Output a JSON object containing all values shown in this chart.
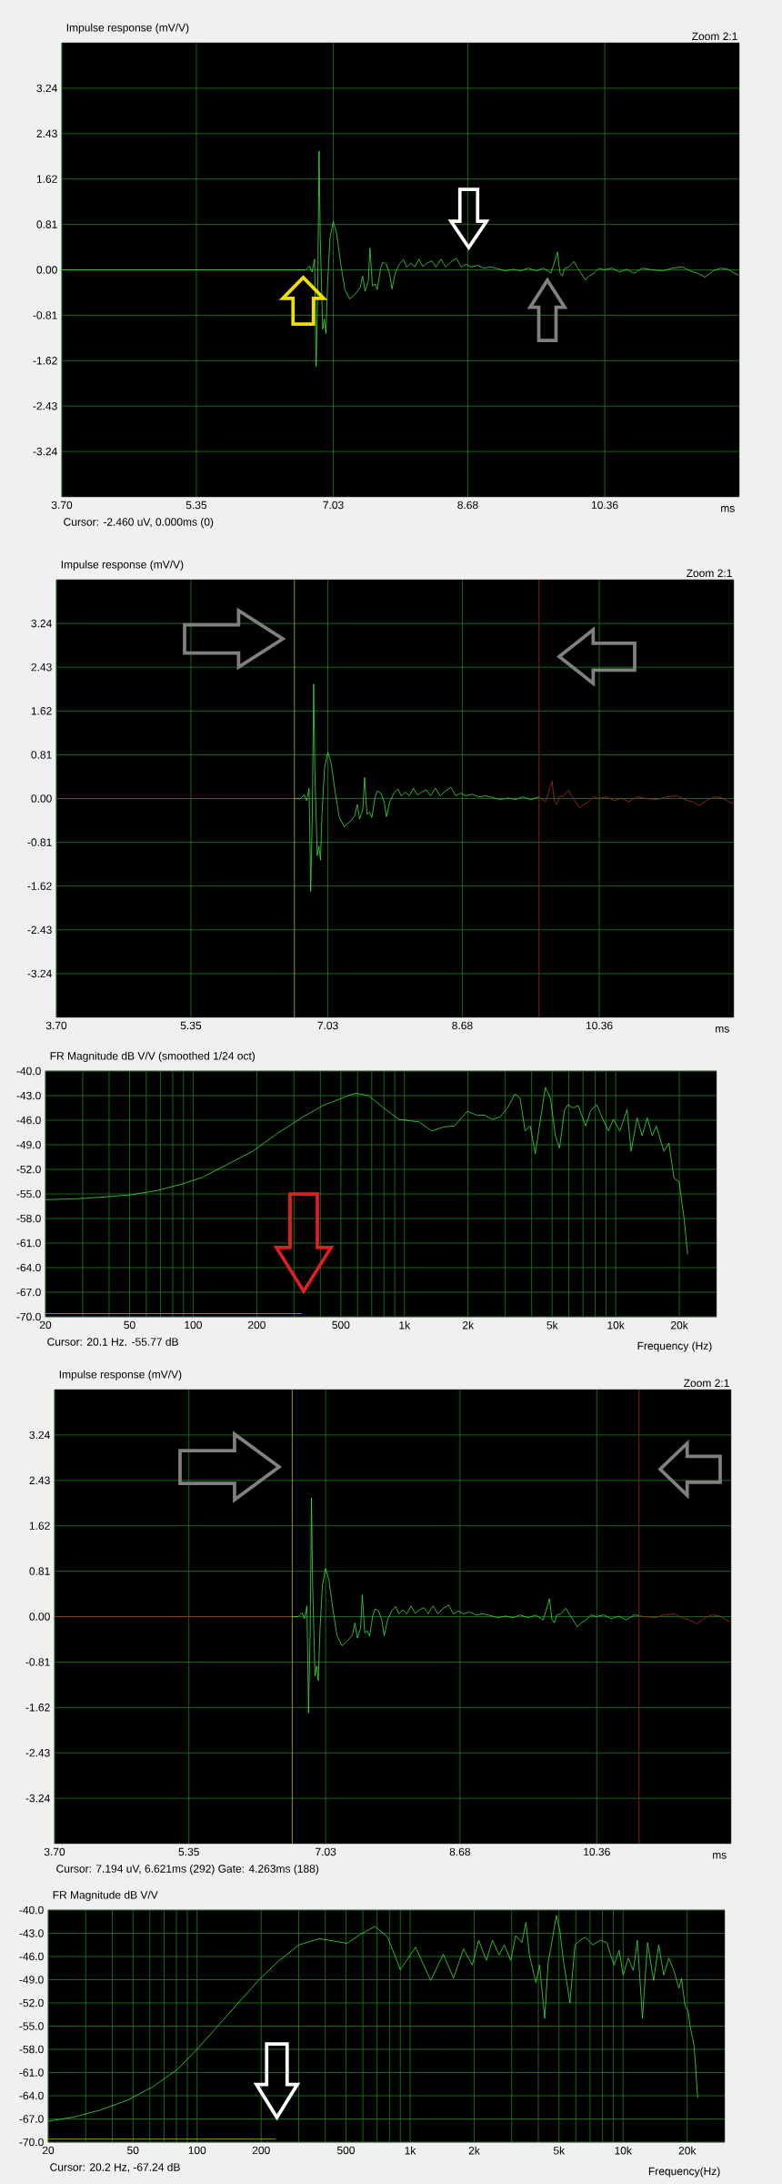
{
  "chart_data": [
    {
      "type": "line",
      "title": "Impulse response (mV/V)",
      "xlabel": "ms",
      "annotations": [
        "Zoom 2:1",
        "Cursor: -2.460 uV, 0.000ms (0)"
      ],
      "xlim": [
        3.7,
        12.01
      ],
      "ylim": [
        -4.05,
        4.05
      ],
      "xticks": [
        {
          "value": 3.7,
          "label": "3.70"
        },
        5.35,
        7.03,
        8.68,
        10.36
      ],
      "yticks": [
        3.24,
        2.43,
        1.62,
        0.81,
        {
          "value": 0,
          "label": "0.00"
        },
        -0.81,
        -1.62,
        -2.43,
        -3.24
      ],
      "grid": true,
      "series": [
        {
          "color": "#40e040",
          "x": [
            3.7,
            6.694,
            6.74,
            6.77,
            6.8,
            6.82,
            6.84,
            6.856,
            6.87,
            6.9,
            6.92,
            6.94,
            6.96,
            6.99,
            7.03,
            7.07,
            7.12,
            7.17,
            7.23,
            7.3,
            7.36,
            7.39,
            7.42,
            7.46,
            7.48,
            7.51,
            7.54,
            7.57,
            7.61,
            7.64,
            7.68,
            7.72,
            7.75,
            7.79,
            7.84,
            7.89,
            7.93,
            7.98,
            8.03,
            8.08,
            8.13,
            8.18,
            8.24,
            8.29,
            8.35,
            8.41,
            8.47,
            8.54,
            8.6,
            8.66,
            8.72,
            8.8,
            8.88,
            8.96,
            9.05,
            9.14,
            9.24,
            9.33,
            9.42,
            9.52,
            9.61,
            9.7,
            9.74,
            9.78,
            9.81,
            9.84,
            9.87,
            9.92,
            9.98,
            10.03,
            10.07,
            10.12,
            10.17,
            10.23,
            10.29,
            10.35,
            10.45,
            10.54,
            10.63,
            10.72,
            10.82,
            10.94,
            11.07,
            11.19,
            11.31,
            11.41,
            11.5,
            11.59,
            11.69,
            11.78,
            11.87,
            11.95,
            12.0
          ],
          "values": [
            0,
            0,
            0.07,
            -0.04,
            0.19,
            -1.72,
            -0.25,
            2.12,
            0.57,
            -1.06,
            -0.88,
            -1.14,
            -0.25,
            0.57,
            0.86,
            0.66,
            0.12,
            -0.34,
            -0.52,
            -0.43,
            -0.32,
            -0.11,
            -0.38,
            -0.2,
            0.39,
            -0.29,
            -0.25,
            -0.35,
            0.03,
            0.14,
            0.1,
            -0.06,
            -0.34,
            -0.06,
            0.1,
            0.18,
            0.05,
            0.12,
            0.05,
            0.19,
            0.06,
            0.12,
            0.16,
            0.05,
            0.19,
            0.05,
            0.14,
            0.21,
            0.05,
            0.1,
            0.05,
            0.08,
            0.03,
            0.05,
            0.02,
            -0.02,
            0.01,
            -0.02,
            0.03,
            -0.02,
            0.03,
            -0.06,
            0.12,
            0.32,
            -0.05,
            -0.11,
            0.03,
            0.05,
            0.15,
            0.03,
            -0.06,
            -0.18,
            -0.11,
            -0.06,
            0.03,
            0,
            0.03,
            -0.04,
            0.01,
            -0.06,
            0.03,
            0,
            -0.02,
            0.03,
            0.05,
            -0.02,
            -0.06,
            -0.13,
            -0.02,
            0.03,
            0.01,
            -0.06,
            -0.09
          ]
        }
      ]
    },
    {
      "type": "line",
      "title": "Impulse response (mV/V)",
      "xlabel": "ms",
      "annotations": [
        "Zoom 2:1"
      ],
      "xlim": [
        3.7,
        12.01
      ],
      "ylim": [
        -4.05,
        4.05
      ],
      "xticks": [
        {
          "value": 3.7,
          "label": "3.70"
        },
        5.35,
        7.03,
        8.68,
        10.36
      ],
      "yticks": [
        3.24,
        2.43,
        1.62,
        0.81,
        {
          "value": 0,
          "label": "0.00"
        },
        -0.81,
        -1.62,
        -2.43,
        -3.24
      ],
      "grid": true,
      "ref_lines": [
        {
          "axis": "x",
          "value": 6.62,
          "color": "#c8b400"
        },
        {
          "axis": "x",
          "value": 9.62,
          "color": "#b02020"
        }
      ],
      "series": [
        {
          "color": "#b03020",
          "x": [
            3.7,
            6.62
          ],
          "values": [
            0,
            0
          ]
        },
        {
          "color": "#40e040",
          "x": [
            6.62,
            6.694,
            6.74,
            6.77,
            6.8,
            6.82,
            6.84,
            6.856,
            6.87,
            6.9,
            6.92,
            6.94,
            6.96,
            6.99,
            7.03,
            7.07,
            7.12,
            7.17,
            7.23,
            7.3,
            7.36,
            7.39,
            7.42,
            7.46,
            7.48,
            7.51,
            7.54,
            7.57,
            7.61,
            7.64,
            7.68,
            7.72,
            7.75,
            7.79,
            7.84,
            7.89,
            7.93,
            7.98,
            8.03,
            8.08,
            8.13,
            8.18,
            8.24,
            8.29,
            8.35,
            8.41,
            8.47,
            8.54,
            8.6,
            8.66,
            8.72,
            8.8,
            8.88,
            8.96,
            9.05,
            9.14,
            9.24,
            9.33,
            9.42,
            9.52,
            9.62
          ],
          "values": [
            0,
            0,
            0.07,
            -0.04,
            0.19,
            -1.72,
            -0.25,
            2.12,
            0.57,
            -1.06,
            -0.88,
            -1.14,
            -0.25,
            0.57,
            0.86,
            0.66,
            0.12,
            -0.34,
            -0.52,
            -0.43,
            -0.32,
            -0.11,
            -0.38,
            -0.2,
            0.39,
            -0.29,
            -0.25,
            -0.35,
            0.03,
            0.14,
            0.1,
            -0.06,
            -0.34,
            -0.06,
            0.1,
            0.18,
            0.05,
            0.12,
            0.05,
            0.19,
            0.06,
            0.12,
            0.16,
            0.05,
            0.19,
            0.05,
            0.14,
            0.21,
            0.05,
            0.1,
            0.05,
            0.08,
            0.03,
            0.05,
            0.02,
            -0.02,
            0.01,
            -0.02,
            0.03,
            -0.02,
            0.03
          ]
        },
        {
          "color": "#b03020",
          "x": [
            9.62,
            9.7,
            9.74,
            9.78,
            9.81,
            9.84,
            9.87,
            9.92,
            9.98,
            10.03,
            10.07,
            10.12,
            10.17,
            10.23,
            10.29,
            10.35,
            10.45,
            10.54,
            10.63,
            10.72,
            10.82,
            10.94,
            11.07,
            11.19,
            11.31,
            11.41,
            11.5,
            11.59,
            11.69,
            11.78,
            11.87,
            11.95,
            12.0
          ],
          "values": [
            0.03,
            -0.06,
            0.12,
            0.32,
            -0.05,
            -0.11,
            0.03,
            0.05,
            0.15,
            0.03,
            -0.06,
            -0.18,
            -0.11,
            -0.06,
            0.03,
            0,
            0.03,
            -0.04,
            0.01,
            -0.06,
            0.03,
            0,
            -0.02,
            0.03,
            0.05,
            -0.02,
            -0.06,
            -0.13,
            -0.02,
            0.03,
            0.01,
            -0.06,
            -0.09
          ]
        }
      ]
    },
    {
      "type": "line",
      "title": "FR Magnitude dB V/V (smoothed 1/24 oct)",
      "xlabel": "Frequency (Hz)",
      "annotations": [
        "Cursor: 20.1 Hz. -55.77 dB"
      ],
      "log": "x",
      "xlim": [
        20,
        30000
      ],
      "ylim": [
        -70,
        -40
      ],
      "xticks": [
        20,
        {
          "value": 30,
          "label": null
        },
        {
          "value": 40,
          "label": null
        },
        50,
        {
          "value": 60,
          "label": null
        },
        {
          "value": 70,
          "label": null
        },
        {
          "value": 80,
          "label": null
        },
        {
          "value": 90,
          "label": null
        },
        100,
        200,
        {
          "value": 300,
          "label": null
        },
        {
          "value": 400,
          "label": null
        },
        500,
        {
          "value": 600,
          "label": null
        },
        {
          "value": 700,
          "label": null
        },
        {
          "value": 800,
          "label": null
        },
        {
          "value": 900,
          "label": null
        },
        {
          "value": 1000,
          "label": "1k"
        },
        {
          "value": 2000,
          "label": "2k"
        },
        {
          "value": 3000,
          "label": null
        },
        {
          "value": 4000,
          "label": null
        },
        {
          "value": 5000,
          "label": "5k"
        },
        {
          "value": 6000,
          "label": null
        },
        {
          "value": 7000,
          "label": null
        },
        {
          "value": 8000,
          "label": null
        },
        {
          "value": 9000,
          "label": null
        },
        {
          "value": 10000,
          "label": "10k"
        },
        {
          "value": 20000,
          "label": "20k"
        }
      ],
      "yticks": [
        {
          "value": -40,
          "label": "-40.0"
        },
        {
          "value": -43,
          "label": "-43.0"
        },
        {
          "value": -46,
          "label": "-46.0"
        },
        {
          "value": -49,
          "label": "-49.0"
        },
        {
          "value": -52,
          "label": "-52.0"
        },
        {
          "value": -55,
          "label": "-55.0"
        },
        {
          "value": -58,
          "label": "-58.0"
        },
        {
          "value": -61,
          "label": "-61.0"
        },
        {
          "value": -64,
          "label": "-64.0"
        },
        {
          "value": -67,
          "label": "-67.0"
        },
        {
          "value": -70,
          "label": "-70.0"
        }
      ],
      "grid": true,
      "series": [
        {
          "color": "#40e040",
          "x": [
            20,
            27.8,
            36.6,
            50.9,
            67.1,
            88.4,
            110,
            145,
            191,
            251,
            331,
            412,
            543,
            589,
            676,
            798,
            942,
            1172,
            1345,
            1545,
            1726,
            1982,
            2210,
            2400,
            2607,
            2831,
            3072,
            3337,
            3527,
            3726,
            3938,
            4161,
            4397,
            4646,
            4909,
            5182,
            5420,
            5720,
            5940,
            6280,
            6640,
            7210,
            7620,
            8130,
            8740,
            9230,
            9750,
            10470,
            11320,
            11830,
            12620,
            13340,
            14100,
            14900,
            15560,
            16900,
            17860,
            18880,
            19950,
            21090,
            21900
          ],
          "values": [
            -55.7,
            -55.6,
            -55.4,
            -55.1,
            -54.6,
            -53.8,
            -53.0,
            -51.4,
            -49.8,
            -47.6,
            -45.6,
            -44.2,
            -43.0,
            -42.7,
            -43.0,
            -44.5,
            -45.9,
            -46.2,
            -47.3,
            -46.8,
            -46.7,
            -44.9,
            -45.4,
            -45.4,
            -45.9,
            -45.6,
            -44.5,
            -42.8,
            -43.3,
            -47.3,
            -46.7,
            -50.1,
            -46.0,
            -42.0,
            -43.3,
            -47.9,
            -49.4,
            -44.8,
            -44.1,
            -44.5,
            -44.2,
            -46.7,
            -44.8,
            -44.1,
            -46.0,
            -47.3,
            -45.9,
            -47.3,
            -44.7,
            -49.8,
            -45.7,
            -47.9,
            -45.7,
            -47.9,
            -46.7,
            -49.8,
            -48.8,
            -53.1,
            -53.5,
            -58.1,
            -62.4
          ]
        },
        {
          "color": "#c8b400",
          "x": [
            20,
            327
          ],
          "values": [
            -69.6,
            -69.6
          ]
        }
      ]
    },
    {
      "type": "line",
      "title": "Impulse response (mV/V)",
      "xlabel": "ms",
      "annotations": [
        "Zoom 2:1",
        "Cursor: 7.194 uV, 6.621ms (292) Gate: 4.263ms (188)"
      ],
      "xlim": [
        3.7,
        12.01
      ],
      "ylim": [
        -4.05,
        4.05
      ],
      "xticks": [
        {
          "value": 3.7,
          "label": "3.70"
        },
        5.35,
        7.03,
        8.68,
        10.36
      ],
      "yticks": [
        3.24,
        2.43,
        1.62,
        0.81,
        {
          "value": 0,
          "label": "0.00"
        },
        -0.81,
        -1.62,
        -2.43,
        -3.24
      ],
      "grid": true,
      "ref_lines": [
        {
          "axis": "x",
          "value": 6.62,
          "color": "#c8b400"
        },
        {
          "axis": "x",
          "value": 10.88,
          "color": "#b02020"
        }
      ],
      "series": [
        {
          "color": "#b03020",
          "x": [
            3.7,
            6.62
          ],
          "values": [
            0,
            0
          ]
        },
        {
          "color": "#40e040",
          "x": [
            6.62,
            6.694,
            6.74,
            6.77,
            6.8,
            6.82,
            6.84,
            6.856,
            6.87,
            6.9,
            6.92,
            6.94,
            6.96,
            6.99,
            7.03,
            7.07,
            7.12,
            7.17,
            7.23,
            7.3,
            7.36,
            7.39,
            7.42,
            7.46,
            7.48,
            7.51,
            7.54,
            7.57,
            7.61,
            7.64,
            7.68,
            7.72,
            7.75,
            7.79,
            7.84,
            7.89,
            7.93,
            7.98,
            8.03,
            8.08,
            8.13,
            8.18,
            8.24,
            8.29,
            8.35,
            8.41,
            8.47,
            8.54,
            8.6,
            8.66,
            8.72,
            8.8,
            8.88,
            8.96,
            9.05,
            9.14,
            9.24,
            9.33,
            9.42,
            9.52,
            9.61,
            9.7,
            9.74,
            9.78,
            9.81,
            9.84,
            9.87,
            9.92,
            9.98,
            10.03,
            10.07,
            10.12,
            10.17,
            10.23,
            10.29,
            10.35,
            10.45,
            10.54,
            10.63,
            10.72,
            10.82,
            10.88
          ],
          "values": [
            0,
            0,
            0.07,
            -0.04,
            0.19,
            -1.72,
            -0.25,
            2.12,
            0.57,
            -1.06,
            -0.88,
            -1.14,
            -0.25,
            0.57,
            0.86,
            0.66,
            0.12,
            -0.34,
            -0.52,
            -0.43,
            -0.32,
            -0.11,
            -0.38,
            -0.2,
            0.39,
            -0.29,
            -0.25,
            -0.35,
            0.03,
            0.14,
            0.1,
            -0.06,
            -0.34,
            -0.06,
            0.1,
            0.18,
            0.05,
            0.12,
            0.05,
            0.19,
            0.06,
            0.12,
            0.16,
            0.05,
            0.19,
            0.05,
            0.14,
            0.21,
            0.05,
            0.1,
            0.05,
            0.08,
            0.03,
            0.05,
            0.02,
            -0.02,
            0.01,
            -0.02,
            0.03,
            -0.02,
            0.03,
            -0.06,
            0.12,
            0.32,
            -0.05,
            -0.11,
            0.03,
            0.05,
            0.15,
            0.03,
            -0.06,
            -0.18,
            -0.11,
            -0.06,
            0.03,
            0,
            0.03,
            -0.04,
            0.01,
            -0.06,
            0.03,
            0.02
          ]
        },
        {
          "color": "#b03020",
          "x": [
            10.88,
            10.94,
            11.07,
            11.19,
            11.31,
            11.41,
            11.5,
            11.59,
            11.69,
            11.78,
            11.87,
            11.95,
            12.0
          ],
          "values": [
            0.02,
            0,
            -0.02,
            0.03,
            0.05,
            -0.02,
            -0.06,
            -0.13,
            -0.02,
            0.03,
            0.01,
            -0.06,
            -0.09
          ]
        }
      ]
    },
    {
      "type": "line",
      "title": "FR Magnitude dB V/V",
      "xlabel": "Frequency(Hz)",
      "annotations": [
        "Cursor: 20.2 Hz, -67.24 dB"
      ],
      "log": "x",
      "xlim": [
        20,
        30000
      ],
      "ylim": [
        -70,
        -40
      ],
      "xticks": [
        20,
        {
          "value": 30,
          "label": null
        },
        {
          "value": 40,
          "label": null
        },
        50,
        {
          "value": 60,
          "label": null
        },
        {
          "value": 70,
          "label": null
        },
        {
          "value": 80,
          "label": null
        },
        {
          "value": 90,
          "label": null
        },
        100,
        200,
        {
          "value": 300,
          "label": null
        },
        {
          "value": 400,
          "label": null
        },
        500,
        {
          "value": 600,
          "label": null
        },
        {
          "value": 700,
          "label": null
        },
        {
          "value": 800,
          "label": null
        },
        {
          "value": 900,
          "label": null
        },
        {
          "value": 1000,
          "label": "1k"
        },
        {
          "value": 2000,
          "label": "2k"
        },
        {
          "value": 3000,
          "label": null
        },
        {
          "value": 4000,
          "label": null
        },
        {
          "value": 5000,
          "label": "5k"
        },
        {
          "value": 6000,
          "label": null
        },
        {
          "value": 7000,
          "label": null
        },
        {
          "value": 8000,
          "label": null
        },
        {
          "value": 9000,
          "label": null
        },
        {
          "value": 10000,
          "label": "10k"
        },
        {
          "value": 20000,
          "label": "20k"
        }
      ],
      "yticks": [
        {
          "value": -40,
          "label": "-40.0"
        },
        {
          "value": -43,
          "label": "-43.0"
        },
        {
          "value": -46,
          "label": "-46.0"
        },
        {
          "value": -49,
          "label": "-49.0"
        },
        {
          "value": -52,
          "label": "-52.0"
        },
        {
          "value": -55,
          "label": "-55.0"
        },
        {
          "value": -58,
          "label": "-58.0"
        },
        {
          "value": -61,
          "label": "-61.0"
        },
        {
          "value": -64,
          "label": "-64.0"
        },
        {
          "value": -67,
          "label": "-67.0"
        },
        {
          "value": -70,
          "label": "-70.0"
        }
      ],
      "grid": true,
      "series": [
        {
          "color": "#40e040",
          "x": [
            20,
            27.0,
            35.6,
            46.8,
            61.5,
            80.8,
            100.6,
            125,
            156,
            194,
            241,
            301,
            374,
            441,
            506,
            580,
            684,
            785,
            900,
            1061,
            1250,
            1432,
            1600,
            1783,
            1958,
            2100,
            2280,
            2438,
            2618,
            2766,
            2967,
            3134,
            3350,
            3500,
            3633,
            3899,
            4055,
            4285,
            4448,
            4648,
            4856,
            5046,
            5245,
            5630,
            5946,
            6285,
            6640,
            7200,
            7820,
            8400,
            8730,
            9070,
            9580,
            10010,
            10570,
            11170,
            11670,
            12330,
            13030,
            13910,
            14700,
            15520,
            16400,
            17300,
            18290,
            18800,
            19540,
            20180,
            20640,
            21560,
            22400
          ],
          "values": [
            -67.3,
            -66.7,
            -65.8,
            -64.6,
            -62.9,
            -60.6,
            -57.9,
            -55.0,
            -52.0,
            -49.1,
            -46.6,
            -44.5,
            -43.7,
            -44.0,
            -44.3,
            -43.2,
            -42.1,
            -43.5,
            -47.7,
            -44.8,
            -49.1,
            -45.7,
            -48.8,
            -45.0,
            -47.1,
            -43.9,
            -46.5,
            -43.9,
            -45.8,
            -44.5,
            -46.5,
            -43.3,
            -44.2,
            -41.6,
            -45.8,
            -49.4,
            -47.1,
            -54.0,
            -46.8,
            -43.9,
            -40.7,
            -42.6,
            -46.5,
            -52.0,
            -44.5,
            -43.9,
            -43.5,
            -44.5,
            -43.9,
            -44.2,
            -45.8,
            -47.1,
            -45.2,
            -48.4,
            -46.2,
            -47.8,
            -43.9,
            -54.0,
            -44.2,
            -49.1,
            -44.5,
            -48.4,
            -46.2,
            -47.8,
            -50.1,
            -48.8,
            -52.4,
            -53.0,
            -55.0,
            -57.6,
            -64.3
          ]
        },
        {
          "color": "#c8b400",
          "x": [
            20,
            234
          ],
          "values": [
            -69.6,
            -69.6
          ]
        }
      ]
    }
  ]
}
